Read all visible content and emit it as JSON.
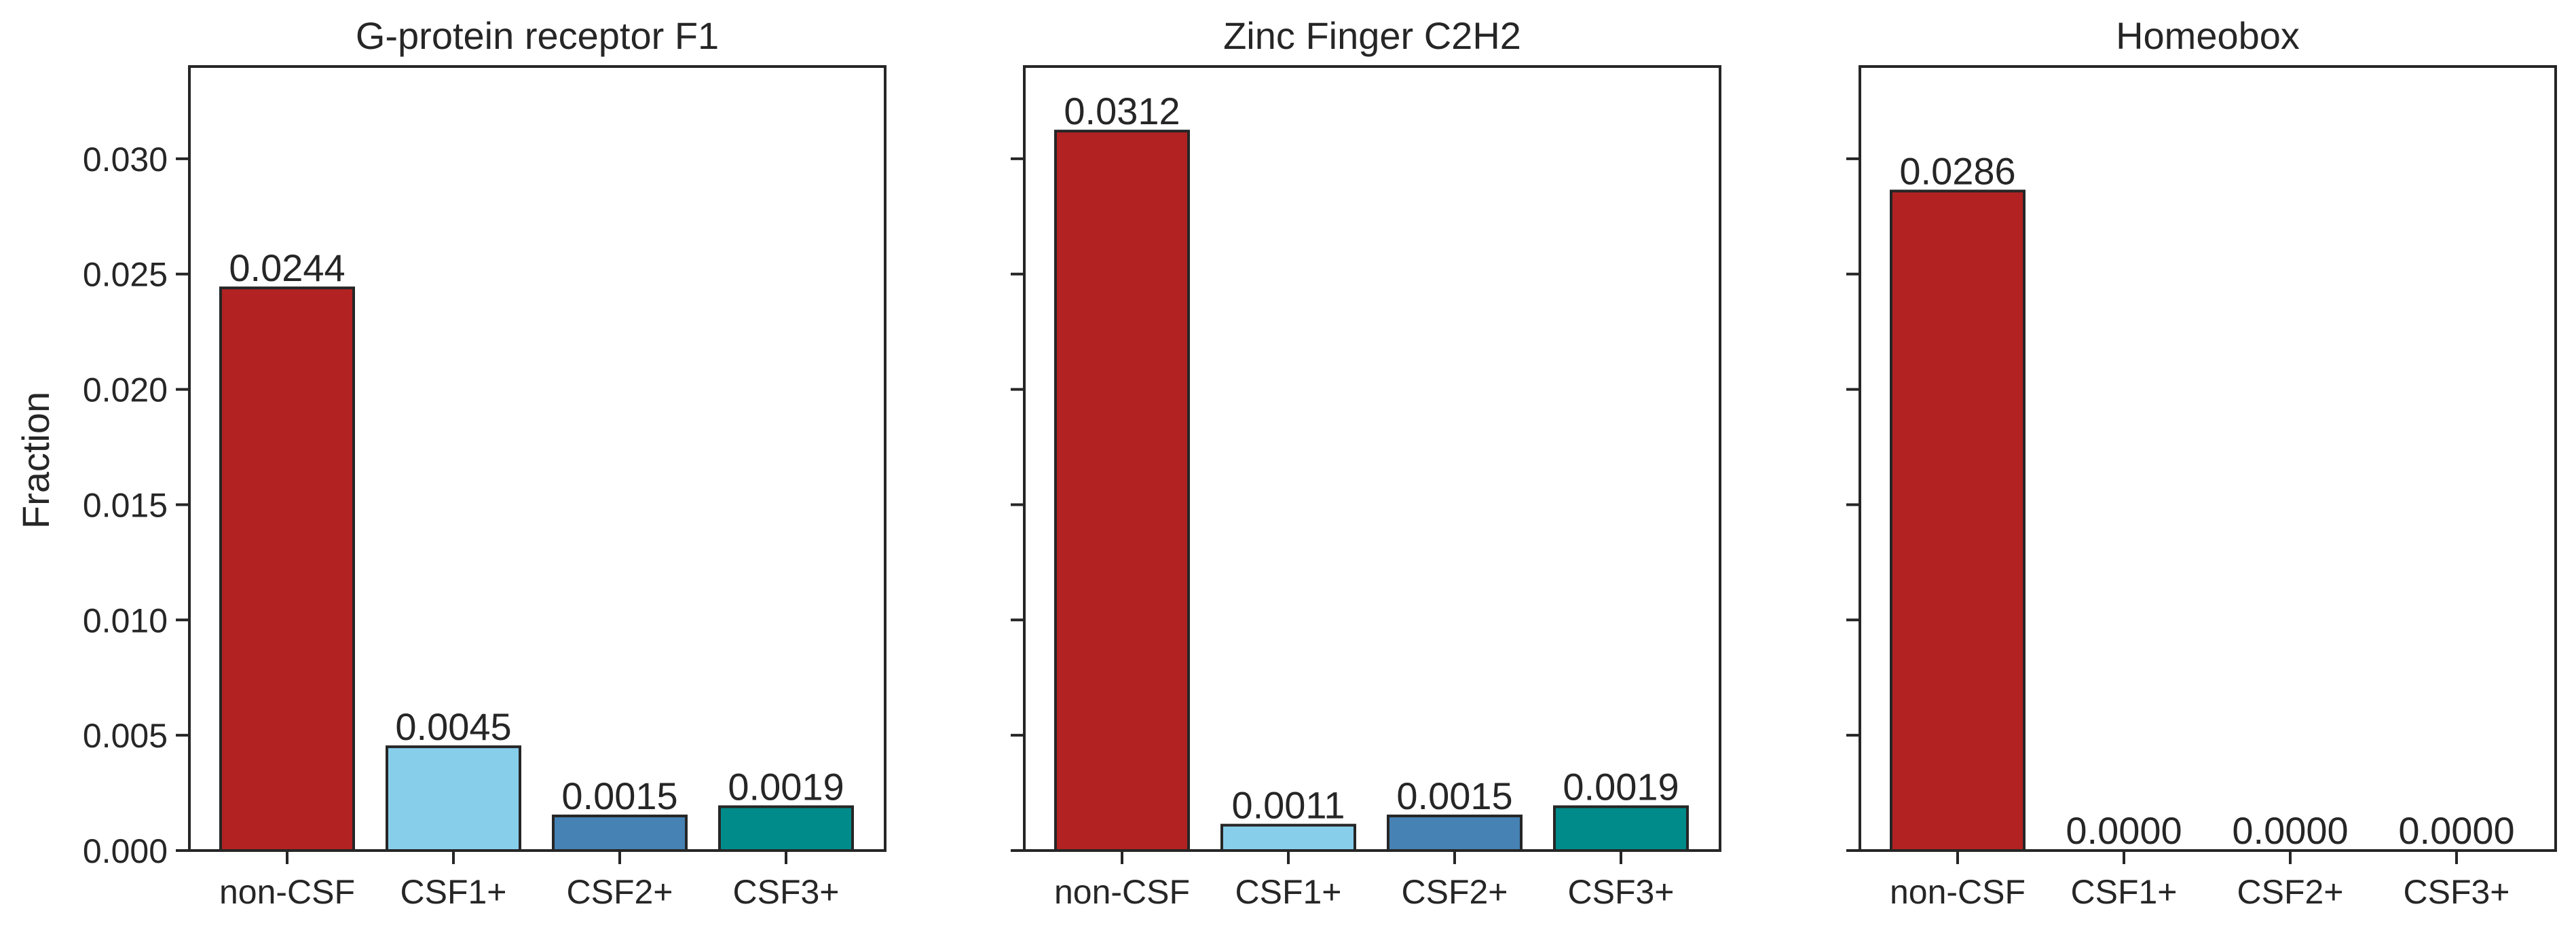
{
  "figure": {
    "ylabel": "Fraction"
  },
  "chart_data": [
    {
      "type": "bar",
      "title": "G-protein receptor F1",
      "categories": [
        "non-CSF",
        "CSF1+",
        "CSF2+",
        "CSF3+"
      ],
      "values": [
        0.0244,
        0.0045,
        0.0015,
        0.0019
      ],
      "value_labels": [
        "0.0244",
        "0.0045",
        "0.0015",
        "0.0019"
      ],
      "xlabel": "",
      "ylabel": "Fraction",
      "ylim": [
        0,
        0.034
      ],
      "yticks": [
        0.0,
        0.005,
        0.01,
        0.015,
        0.02,
        0.025,
        0.03
      ],
      "ytick_labels": [
        "0.000",
        "0.005",
        "0.010",
        "0.015",
        "0.020",
        "0.025",
        "0.030"
      ],
      "colors": [
        "#b22222",
        "#87ceeb",
        "#4682b4",
        "#008b8b"
      ],
      "grid": false
    },
    {
      "type": "bar",
      "title": "Zinc Finger C2H2",
      "categories": [
        "non-CSF",
        "CSF1+",
        "CSF2+",
        "CSF3+"
      ],
      "values": [
        0.0312,
        0.0011,
        0.0015,
        0.0019
      ],
      "value_labels": [
        "0.0312",
        "0.0011",
        "0.0015",
        "0.0019"
      ],
      "xlabel": "",
      "ylabel": "",
      "ylim": [
        0,
        0.034
      ],
      "yticks": [
        0.0,
        0.005,
        0.01,
        0.015,
        0.02,
        0.025,
        0.03
      ],
      "ytick_labels": [],
      "colors": [
        "#b22222",
        "#87ceeb",
        "#4682b4",
        "#008b8b"
      ],
      "grid": false
    },
    {
      "type": "bar",
      "title": "Homeobox",
      "categories": [
        "non-CSF",
        "CSF1+",
        "CSF2+",
        "CSF3+"
      ],
      "values": [
        0.0286,
        0.0,
        0.0,
        0.0
      ],
      "value_labels": [
        "0.0286",
        "0.0000",
        "0.0000",
        "0.0000"
      ],
      "xlabel": "",
      "ylabel": "",
      "ylim": [
        0,
        0.034
      ],
      "yticks": [
        0.0,
        0.005,
        0.01,
        0.015,
        0.02,
        0.025,
        0.03
      ],
      "ytick_labels": [],
      "colors": [
        "#b22222",
        "#87ceeb",
        "#4682b4",
        "#008b8b"
      ],
      "grid": false
    }
  ]
}
